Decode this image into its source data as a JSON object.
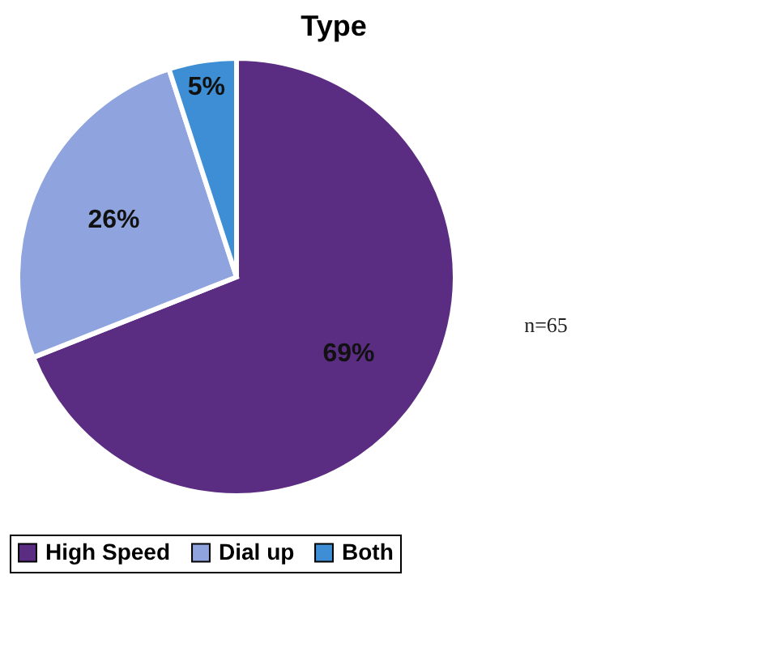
{
  "chart_data": {
    "type": "pie",
    "title": "Type",
    "categories": [
      "High Speed",
      "Dial up",
      "Both"
    ],
    "values": [
      69,
      26,
      5
    ],
    "colors": [
      "#5a2d82",
      "#8fa4de",
      "#3d8ed4"
    ],
    "value_labels": [
      "69%",
      "26%",
      "5%"
    ],
    "annotations": [
      "n=65"
    ],
    "legend": "bottom"
  }
}
